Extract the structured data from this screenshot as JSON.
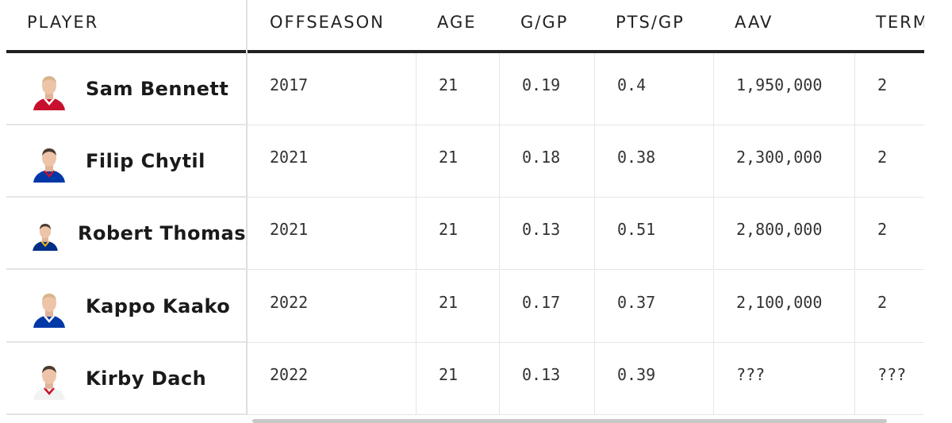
{
  "table": {
    "headers": [
      "PLAYER",
      "OFFSEASON",
      "AGE",
      "G/GP",
      "PTS/GP",
      "AAV",
      "TERM"
    ],
    "rows": [
      [
        "Sam Bennett",
        "2017",
        "21",
        "0.19",
        "0.4",
        "1,950,000",
        "2"
      ],
      [
        "Filip Chytil",
        "2021",
        "21",
        "0.18",
        "0.38",
        "2,300,000",
        "2"
      ],
      [
        "Robert Thomas",
        "2021",
        "21",
        "0.13",
        "0.51",
        "2,800,000",
        "2"
      ],
      [
        "Kappo Kaako",
        "2022",
        "21",
        "0.17",
        "0.37",
        "2,100,000",
        "2"
      ],
      [
        "Kirby Dach",
        "2022",
        "21",
        "0.13",
        "0.39",
        "???",
        "???"
      ]
    ]
  }
}
